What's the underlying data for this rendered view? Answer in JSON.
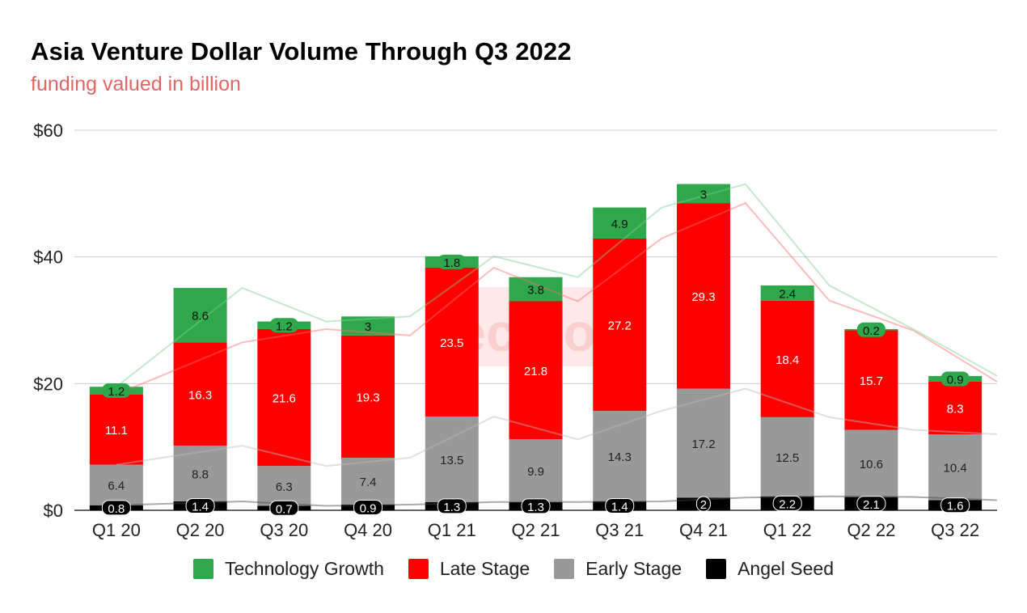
{
  "title": "Asia Venture Dollar Volume Through Q3 2022",
  "subtitle": "funding valued in billion",
  "watermark": "Techloy.",
  "chart_data": {
    "type": "bar",
    "stacked": true,
    "title": "Asia Venture Dollar Volume Through Q3 2022",
    "subtitle": "funding valued in billion",
    "categories": [
      "Q1 20",
      "Q2 20",
      "Q3 20",
      "Q4 20",
      "Q1 21",
      "Q2 21",
      "Q3 21",
      "Q4 21",
      "Q1 22",
      "Q2 22",
      "Q3 22"
    ],
    "series": [
      {
        "name": "Angel Seed",
        "color": "#000000",
        "label_color": "#ffffff",
        "values": [
          0.8,
          1.4,
          0.7,
          0.9,
          1.3,
          1.3,
          1.4,
          2,
          2.2,
          2.1,
          1.6
        ]
      },
      {
        "name": "Early Stage",
        "color": "#999999",
        "label_color": "#222222",
        "values": [
          6.4,
          8.8,
          6.3,
          7.4,
          13.5,
          9.9,
          14.3,
          17.2,
          12.5,
          10.6,
          10.4
        ]
      },
      {
        "name": "Late Stage",
        "color": "#ff0000",
        "label_color": "#ffffff",
        "values": [
          11.1,
          16.3,
          21.6,
          19.3,
          23.5,
          21.8,
          27.2,
          29.3,
          18.4,
          15.7,
          8.3
        ]
      },
      {
        "name": "Technology Growth",
        "color": "#2ea84a",
        "label_color": "#111111",
        "values": [
          1.2,
          8.6,
          1.2,
          3,
          1.8,
          3.8,
          4.9,
          3,
          2.4,
          0.2,
          0.9
        ]
      }
    ],
    "legend_order": [
      "Technology Growth",
      "Late Stage",
      "Early Stage",
      "Angel Seed"
    ],
    "y_ticks": [
      "$0",
      "$20",
      "$40",
      "$60"
    ],
    "ylim": [
      0,
      60
    ],
    "grid": true,
    "legend_position": "bottom",
    "trendlines": true
  }
}
